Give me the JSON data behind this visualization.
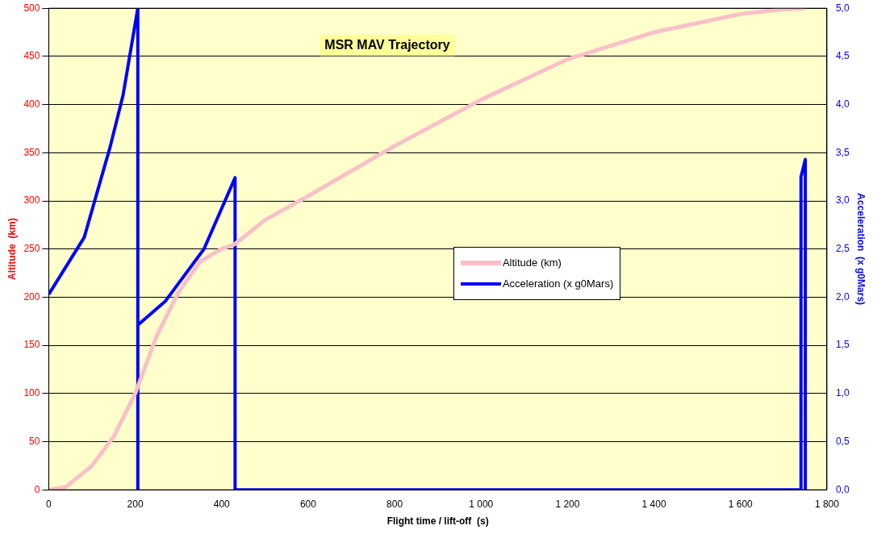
{
  "chart_data": {
    "type": "line",
    "title": "MSR MAV Trajectory",
    "xlabel": "Flight time / lift-off  (s)",
    "ylabel": "Altitude  (km)",
    "y2label": "Acceleration  (x g0Mars)",
    "xlim": [
      0,
      1800
    ],
    "xticks": [
      0,
      200,
      400,
      600,
      800,
      {
        "value": 1000,
        "label": "1 000"
      },
      {
        "value": 1200,
        "label": "1 200"
      },
      {
        "value": 1400,
        "label": "1 400"
      },
      {
        "value": 1600,
        "label": "1 600"
      },
      {
        "value": 1800,
        "label": "1 800"
      }
    ],
    "ylim": [
      0,
      500
    ],
    "yticks": [
      0,
      50,
      100,
      150,
      200,
      250,
      300,
      350,
      400,
      450,
      500
    ],
    "y2lim": [
      0,
      5
    ],
    "y2ticks": [
      {
        "value": 0,
        "label": "0,0"
      },
      {
        "value": 0.5,
        "label": "0,5"
      },
      {
        "value": 1,
        "label": "1,0"
      },
      {
        "value": 1.5,
        "label": "1,5"
      },
      {
        "value": 2,
        "label": "2,0"
      },
      {
        "value": 2.5,
        "label": "2,5"
      },
      {
        "value": 3,
        "label": "3,0"
      },
      {
        "value": 3.5,
        "label": "3,5"
      },
      {
        "value": 4,
        "label": "4,0"
      },
      {
        "value": 4.5,
        "label": "4,5"
      },
      {
        "value": 5,
        "label": "5,0"
      }
    ],
    "grid": "y",
    "legend": "right",
    "marker": "none",
    "series": [
      {
        "name": "Altitude (km)",
        "color": "#f9c0c8",
        "x": [
          0,
          40,
          100,
          150,
          200,
          250,
          300,
          350,
          400,
          430,
          500,
          600,
          800,
          1000,
          1200,
          1400,
          1600,
          1700,
          1750
        ],
        "values": [
          0,
          3,
          25,
          55,
          100,
          160,
          205,
          237,
          250,
          255,
          280,
          305,
          357,
          405,
          447,
          475,
          494,
          499,
          500
        ]
      },
      {
        "name": "Acceleration (x g0Mars)",
        "color": "#0000ff",
        "axis": "y2",
        "x": [
          0,
          82,
          105,
          142,
          172,
          206,
          206,
          206,
          270,
          359,
          431,
          431,
          1740,
          1740,
          1750,
          1750
        ],
        "values": [
          2.03,
          2.62,
          2.98,
          3.56,
          4.1,
          5.0,
          0,
          1.71,
          1.96,
          2.5,
          3.24,
          0,
          0,
          3.25,
          3.43,
          0
        ]
      }
    ]
  }
}
